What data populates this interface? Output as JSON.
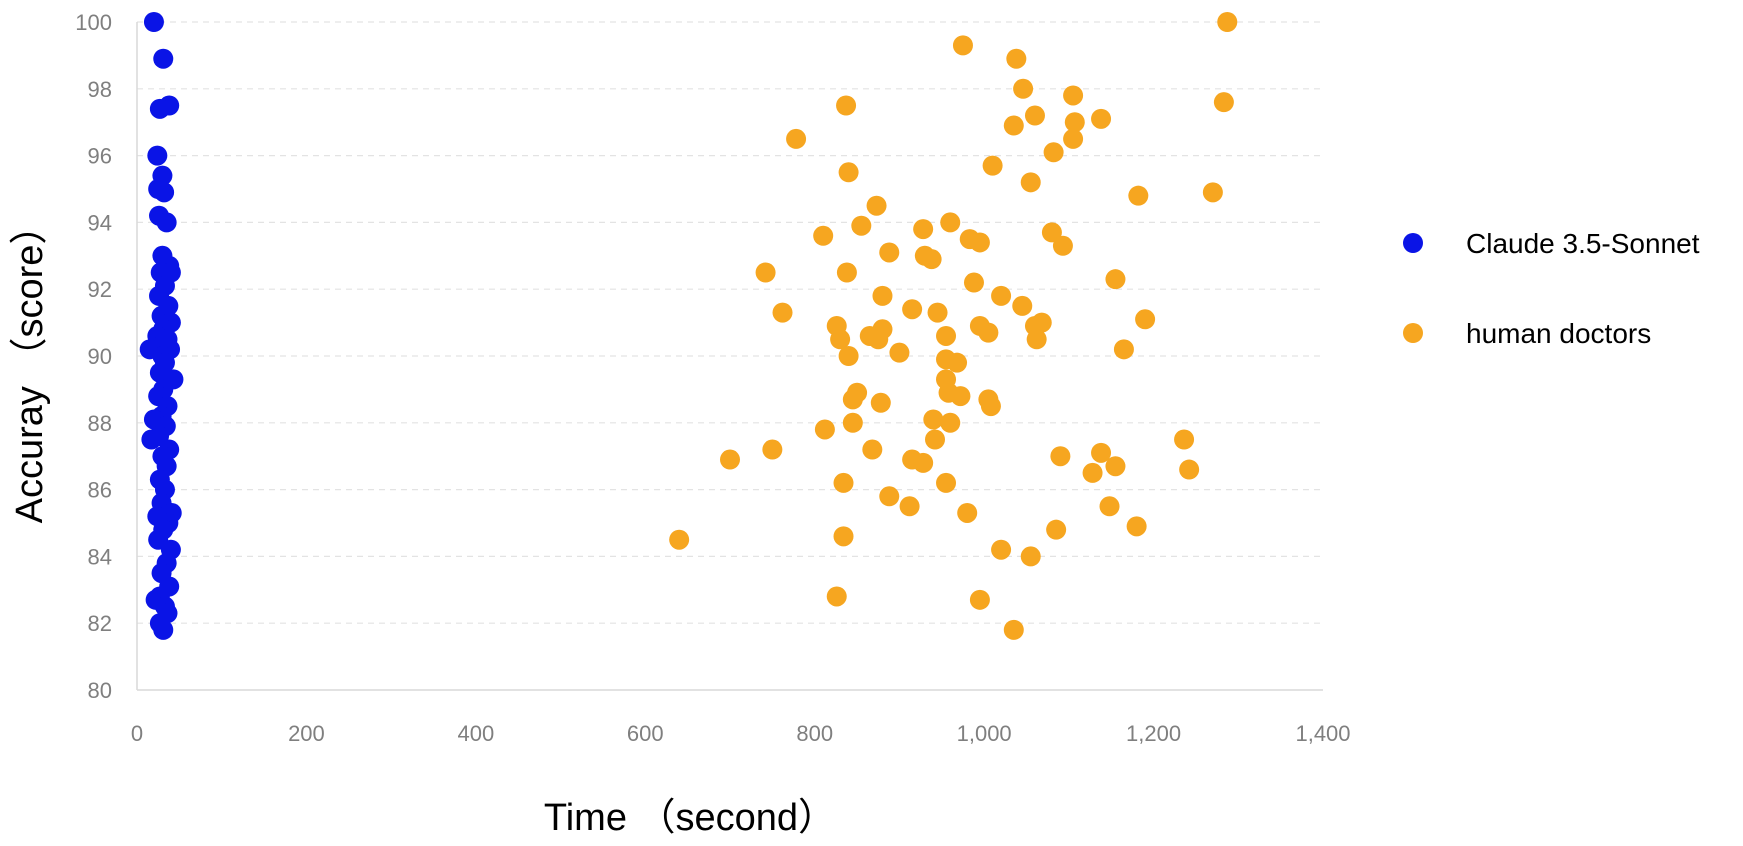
{
  "chart_data": {
    "type": "scatter",
    "title": "",
    "xlabel": "Time （second）",
    "ylabel": "Accuray （score）",
    "xlim": [
      0,
      1400
    ],
    "ylim": [
      80,
      100
    ],
    "x_ticks": [
      0,
      200,
      400,
      600,
      800,
      1000,
      1200,
      1400
    ],
    "x_tick_labels": [
      "0",
      "200",
      "400",
      "600",
      "800",
      "1,000",
      "1,200",
      "1,400"
    ],
    "y_ticks": [
      80,
      82,
      84,
      86,
      88,
      90,
      92,
      94,
      96,
      98,
      100
    ],
    "y_tick_labels": [
      "80",
      "82",
      "84",
      "86",
      "88",
      "90",
      "92",
      "94",
      "96",
      "98",
      "100"
    ],
    "grid": "horizontal dashed",
    "legend_position": "right",
    "series": [
      {
        "name": "Claude 3.5-Sonnet",
        "color": "#0a14e6",
        "points": [
          [
            20,
            100.0
          ],
          [
            31,
            98.9
          ],
          [
            38,
            97.5
          ],
          [
            27,
            97.4
          ],
          [
            24,
            96.0
          ],
          [
            30,
            95.4
          ],
          [
            25,
            95.0
          ],
          [
            32,
            94.9
          ],
          [
            26,
            94.2
          ],
          [
            35,
            94.0
          ],
          [
            30,
            93.0
          ],
          [
            38,
            92.7
          ],
          [
            28,
            92.5
          ],
          [
            40,
            92.5
          ],
          [
            33,
            92.1
          ],
          [
            26,
            91.8
          ],
          [
            37,
            91.5
          ],
          [
            29,
            91.2
          ],
          [
            40,
            91.0
          ],
          [
            31,
            90.8
          ],
          [
            24,
            90.6
          ],
          [
            36,
            90.5
          ],
          [
            28,
            90.3
          ],
          [
            15,
            90.2
          ],
          [
            39,
            90.2
          ],
          [
            30,
            90.0
          ],
          [
            33,
            89.8
          ],
          [
            27,
            89.5
          ],
          [
            43,
            89.3
          ],
          [
            31,
            89.0
          ],
          [
            25,
            88.8
          ],
          [
            36,
            88.5
          ],
          [
            29,
            88.2
          ],
          [
            20,
            88.1
          ],
          [
            34,
            87.9
          ],
          [
            26,
            87.6
          ],
          [
            17,
            87.5
          ],
          [
            38,
            87.2
          ],
          [
            30,
            87.0
          ],
          [
            35,
            86.7
          ],
          [
            27,
            86.3
          ],
          [
            33,
            86.0
          ],
          [
            29,
            85.6
          ],
          [
            41,
            85.3
          ],
          [
            24,
            85.2
          ],
          [
            37,
            85.0
          ],
          [
            31,
            84.8
          ],
          [
            25,
            84.5
          ],
          [
            40,
            84.2
          ],
          [
            35,
            83.8
          ],
          [
            29,
            83.5
          ],
          [
            38,
            83.1
          ],
          [
            27,
            82.8
          ],
          [
            22,
            82.7
          ],
          [
            33,
            82.5
          ],
          [
            36,
            82.3
          ],
          [
            27,
            82.0
          ],
          [
            31,
            81.8
          ]
        ]
      },
      {
        "name": "human doctors",
        "color": "#f6a620",
        "points": [
          [
            1287,
            100.0
          ],
          [
            975,
            99.3
          ],
          [
            1038,
            98.9
          ],
          [
            1046,
            98.0
          ],
          [
            1283,
            97.6
          ],
          [
            837,
            97.5
          ],
          [
            1105,
            97.8
          ],
          [
            1060,
            97.2
          ],
          [
            1138,
            97.1
          ],
          [
            1107,
            97.0
          ],
          [
            1035,
            96.9
          ],
          [
            778,
            96.5
          ],
          [
            1105,
            96.5
          ],
          [
            1082,
            96.1
          ],
          [
            1010,
            95.7
          ],
          [
            1055,
            95.2
          ],
          [
            840,
            95.5
          ],
          [
            1270,
            94.9
          ],
          [
            1182,
            94.8
          ],
          [
            873,
            94.5
          ],
          [
            855,
            93.9
          ],
          [
            960,
            94.0
          ],
          [
            928,
            93.8
          ],
          [
            1080,
            93.7
          ],
          [
            810,
            93.6
          ],
          [
            983,
            93.5
          ],
          [
            995,
            93.4
          ],
          [
            1093,
            93.3
          ],
          [
            888,
            93.1
          ],
          [
            930,
            93.0
          ],
          [
            938,
            92.9
          ],
          [
            742,
            92.5
          ],
          [
            838,
            92.5
          ],
          [
            1155,
            92.3
          ],
          [
            988,
            92.2
          ],
          [
            880,
            91.8
          ],
          [
            1020,
            91.8
          ],
          [
            1045,
            91.5
          ],
          [
            915,
            91.4
          ],
          [
            945,
            91.3
          ],
          [
            762,
            91.3
          ],
          [
            1190,
            91.1
          ],
          [
            826,
            90.9
          ],
          [
            1060,
            90.9
          ],
          [
            1068,
            91.0
          ],
          [
            995,
            90.9
          ],
          [
            1005,
            90.7
          ],
          [
            880,
            90.8
          ],
          [
            875,
            90.5
          ],
          [
            830,
            90.5
          ],
          [
            865,
            90.6
          ],
          [
            955,
            90.6
          ],
          [
            1062,
            90.5
          ],
          [
            1165,
            90.2
          ],
          [
            900,
            90.1
          ],
          [
            840,
            90.0
          ],
          [
            968,
            89.8
          ],
          [
            955,
            89.9
          ],
          [
            850,
            88.9
          ],
          [
            955,
            89.3
          ],
          [
            958,
            88.9
          ],
          [
            972,
            88.8
          ],
          [
            1005,
            88.7
          ],
          [
            845,
            88.7
          ],
          [
            878,
            88.6
          ],
          [
            1008,
            88.5
          ],
          [
            940,
            88.1
          ],
          [
            960,
            88.0
          ],
          [
            845,
            88.0
          ],
          [
            812,
            87.8
          ],
          [
            942,
            87.5
          ],
          [
            1236,
            87.5
          ],
          [
            750,
            87.2
          ],
          [
            868,
            87.2
          ],
          [
            1090,
            87.0
          ],
          [
            1138,
            87.1
          ],
          [
            700,
            86.9
          ],
          [
            915,
            86.9
          ],
          [
            928,
            86.8
          ],
          [
            1155,
            86.7
          ],
          [
            1242,
            86.6
          ],
          [
            1128,
            86.5
          ],
          [
            955,
            86.2
          ],
          [
            834,
            86.2
          ],
          [
            888,
            85.8
          ],
          [
            912,
            85.5
          ],
          [
            1148,
            85.5
          ],
          [
            980,
            85.3
          ],
          [
            1180,
            84.9
          ],
          [
            1085,
            84.8
          ],
          [
            640,
            84.5
          ],
          [
            834,
            84.6
          ],
          [
            1020,
            84.2
          ],
          [
            1055,
            84.0
          ],
          [
            826,
            82.8
          ],
          [
            995,
            82.7
          ],
          [
            1035,
            81.8
          ]
        ]
      }
    ]
  }
}
